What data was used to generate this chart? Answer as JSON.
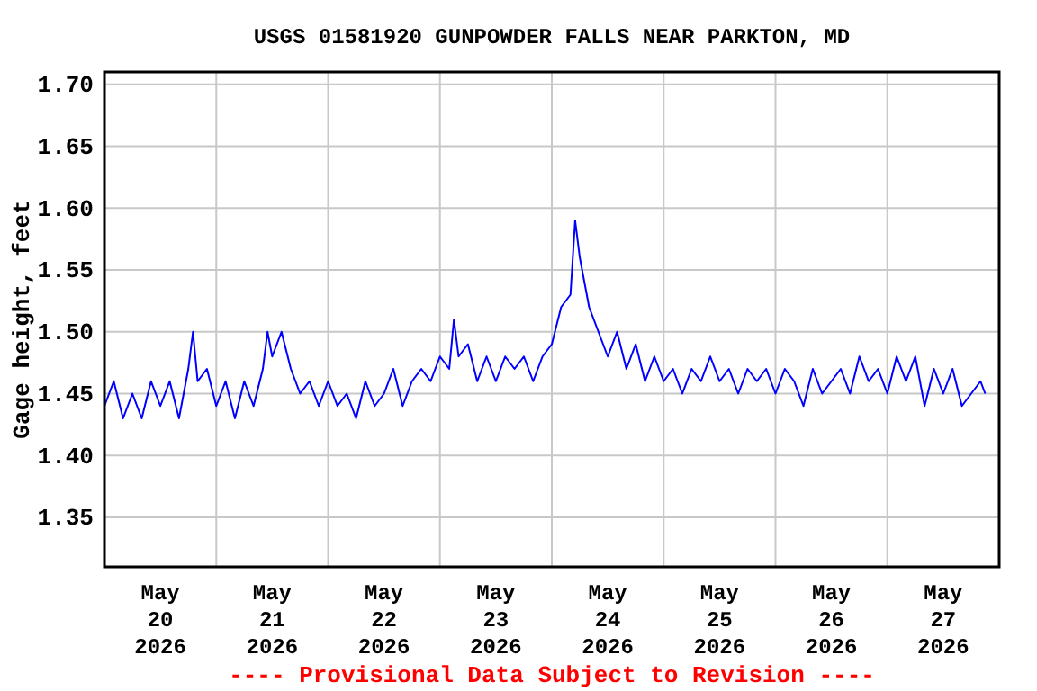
{
  "chart_data": {
    "type": "line",
    "title": "USGS 01581920 GUNPOWDER FALLS NEAR PARKTON, MD",
    "ylabel": "Gage height, feet",
    "annotations": [
      "---- Provisional Data Subject to Revision ----"
    ],
    "xlim": [
      "2026-05-20T00:00",
      "2026-05-28T00:00"
    ],
    "xticks": [
      {
        "value": "2026-05-20T00:00",
        "label": null
      },
      {
        "value": "2026-05-20T12:00",
        "label": "May\n20\n2026"
      },
      {
        "value": "2026-05-21T00:00",
        "label": null
      },
      {
        "value": "2026-05-21T12:00",
        "label": "May\n21\n2026"
      },
      {
        "value": "2026-05-22T00:00",
        "label": null
      },
      {
        "value": "2026-05-22T12:00",
        "label": "May\n22\n2026"
      },
      {
        "value": "2026-05-23T00:00",
        "label": null
      },
      {
        "value": "2026-05-23T12:00",
        "label": "May\n23\n2026"
      },
      {
        "value": "2026-05-24T00:00",
        "label": null
      },
      {
        "value": "2026-05-24T12:00",
        "label": "May\n24\n2026"
      },
      {
        "value": "2026-05-25T00:00",
        "label": null
      },
      {
        "value": "2026-05-25T12:00",
        "label": "May\n25\n2026"
      },
      {
        "value": "2026-05-26T00:00",
        "label": null
      },
      {
        "value": "2026-05-26T12:00",
        "label": "May\n26\n2026"
      },
      {
        "value": "2026-05-27T00:00",
        "label": null
      },
      {
        "value": "2026-05-27T12:00",
        "label": "May\n27\n2026"
      },
      {
        "value": "2026-05-28T00:00",
        "label": null
      }
    ],
    "ylim": [
      1.31,
      1.71
    ],
    "yticks": [
      {
        "value": 1.35,
        "label": "1.35"
      },
      {
        "value": 1.4,
        "label": "1.40"
      },
      {
        "value": 1.45,
        "label": "1.45"
      },
      {
        "value": 1.5,
        "label": "1.50"
      },
      {
        "value": 1.55,
        "label": "1.55"
      },
      {
        "value": 1.6,
        "label": "1.60"
      },
      {
        "value": 1.65,
        "label": "1.65"
      },
      {
        "value": 1.7,
        "label": "1.70"
      }
    ],
    "grid": true,
    "series": [
      {
        "color": "#0000ff",
        "x": [
          "2026-05-20T00:00",
          "2026-05-20T02:00",
          "2026-05-20T04:00",
          "2026-05-20T06:00",
          "2026-05-20T08:00",
          "2026-05-20T10:00",
          "2026-05-20T12:00",
          "2026-05-20T14:00",
          "2026-05-20T16:00",
          "2026-05-20T18:00",
          "2026-05-20T19:00",
          "2026-05-20T20:00",
          "2026-05-20T22:00",
          "2026-05-21T00:00",
          "2026-05-21T02:00",
          "2026-05-21T04:00",
          "2026-05-21T06:00",
          "2026-05-21T08:00",
          "2026-05-21T10:00",
          "2026-05-21T11:00",
          "2026-05-21T12:00",
          "2026-05-21T14:00",
          "2026-05-21T16:00",
          "2026-05-21T18:00",
          "2026-05-21T20:00",
          "2026-05-21T22:00",
          "2026-05-22T00:00",
          "2026-05-22T02:00",
          "2026-05-22T04:00",
          "2026-05-22T06:00",
          "2026-05-22T08:00",
          "2026-05-22T10:00",
          "2026-05-22T12:00",
          "2026-05-22T14:00",
          "2026-05-22T16:00",
          "2026-05-22T18:00",
          "2026-05-22T20:00",
          "2026-05-22T22:00",
          "2026-05-23T00:00",
          "2026-05-23T02:00",
          "2026-05-23T03:00",
          "2026-05-23T04:00",
          "2026-05-23T06:00",
          "2026-05-23T08:00",
          "2026-05-23T10:00",
          "2026-05-23T12:00",
          "2026-05-23T14:00",
          "2026-05-23T16:00",
          "2026-05-23T18:00",
          "2026-05-23T20:00",
          "2026-05-23T22:00",
          "2026-05-24T00:00",
          "2026-05-24T02:00",
          "2026-05-24T04:00",
          "2026-05-24T05:00",
          "2026-05-24T06:00",
          "2026-05-24T08:00",
          "2026-05-24T10:00",
          "2026-05-24T12:00",
          "2026-05-24T14:00",
          "2026-05-24T16:00",
          "2026-05-24T18:00",
          "2026-05-24T20:00",
          "2026-05-24T22:00",
          "2026-05-25T00:00",
          "2026-05-25T02:00",
          "2026-05-25T04:00",
          "2026-05-25T06:00",
          "2026-05-25T08:00",
          "2026-05-25T10:00",
          "2026-05-25T12:00",
          "2026-05-25T14:00",
          "2026-05-25T16:00",
          "2026-05-25T18:00",
          "2026-05-25T20:00",
          "2026-05-25T22:00",
          "2026-05-26T00:00",
          "2026-05-26T02:00",
          "2026-05-26T04:00",
          "2026-05-26T06:00",
          "2026-05-26T08:00",
          "2026-05-26T10:00",
          "2026-05-26T12:00",
          "2026-05-26T14:00",
          "2026-05-26T16:00",
          "2026-05-26T18:00",
          "2026-05-26T20:00",
          "2026-05-26T22:00",
          "2026-05-27T00:00",
          "2026-05-27T02:00",
          "2026-05-27T04:00",
          "2026-05-27T06:00",
          "2026-05-27T08:00",
          "2026-05-27T10:00",
          "2026-05-27T12:00",
          "2026-05-27T14:00",
          "2026-05-27T16:00",
          "2026-05-27T18:00",
          "2026-05-27T20:00",
          "2026-05-27T21:00"
        ],
        "values": [
          1.44,
          1.46,
          1.43,
          1.45,
          1.43,
          1.46,
          1.44,
          1.46,
          1.43,
          1.47,
          1.5,
          1.46,
          1.47,
          1.44,
          1.46,
          1.43,
          1.46,
          1.44,
          1.47,
          1.5,
          1.48,
          1.5,
          1.47,
          1.45,
          1.46,
          1.44,
          1.46,
          1.44,
          1.45,
          1.43,
          1.46,
          1.44,
          1.45,
          1.47,
          1.44,
          1.46,
          1.47,
          1.46,
          1.48,
          1.47,
          1.51,
          1.48,
          1.49,
          1.46,
          1.48,
          1.46,
          1.48,
          1.47,
          1.48,
          1.46,
          1.48,
          1.49,
          1.52,
          1.53,
          1.59,
          1.56,
          1.52,
          1.5,
          1.48,
          1.5,
          1.47,
          1.49,
          1.46,
          1.48,
          1.46,
          1.47,
          1.45,
          1.47,
          1.46,
          1.48,
          1.46,
          1.47,
          1.45,
          1.47,
          1.46,
          1.47,
          1.45,
          1.47,
          1.46,
          1.44,
          1.47,
          1.45,
          1.46,
          1.47,
          1.45,
          1.48,
          1.46,
          1.47,
          1.45,
          1.48,
          1.46,
          1.48,
          1.44,
          1.47,
          1.45,
          1.47,
          1.44,
          1.45,
          1.46,
          1.45
        ]
      }
    ]
  }
}
